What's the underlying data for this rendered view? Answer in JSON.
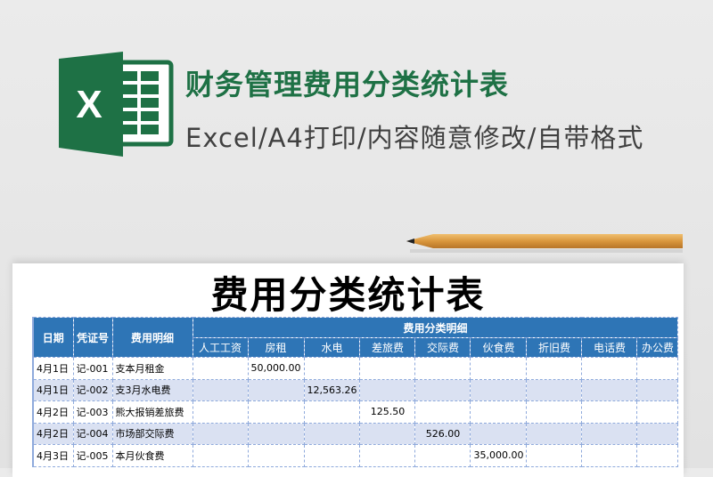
{
  "banner": {
    "title": "财务管理费用分类统计表",
    "subtitle": "Excel/A4打印/内容随意修改/自带格式",
    "logo_letter": "X",
    "brand_color": "#1e7145"
  },
  "sheet": {
    "title": "费用分类统计表",
    "headers": {
      "date": "日期",
      "voucher": "凭证号",
      "detail": "费用明细",
      "group": "费用分类明细",
      "categories": [
        "人工工资",
        "房租",
        "水电",
        "差旅费",
        "交际费",
        "伙食费",
        "折旧费",
        "电话费",
        "办公费"
      ]
    },
    "rows": [
      {
        "date": "4月1日",
        "voucher": "记-001",
        "detail": "支本月租金",
        "values": [
          "",
          "50,000.00",
          "",
          "",
          "",
          "",
          "",
          "",
          ""
        ]
      },
      {
        "date": "4月1日",
        "voucher": "记-002",
        "detail": "支3月水电费",
        "values": [
          "",
          "",
          "12,563.26",
          "",
          "",
          "",
          "",
          "",
          ""
        ]
      },
      {
        "date": "4月2日",
        "voucher": "记-003",
        "detail": "熊大报销差旅费",
        "values": [
          "",
          "",
          "",
          "125.50",
          "",
          "",
          "",
          "",
          ""
        ]
      },
      {
        "date": "4月2日",
        "voucher": "记-004",
        "detail": "市场部交际费",
        "values": [
          "",
          "",
          "",
          "",
          "526.00",
          "",
          "",
          "",
          ""
        ]
      },
      {
        "date": "4月3日",
        "voucher": "记-005",
        "detail": "本月伙食费",
        "values": [
          "",
          "",
          "",
          "",
          "",
          "35,000.00",
          "",
          "",
          ""
        ]
      }
    ],
    "header_color": "#2e75b6",
    "alt_row_color": "#dae1f2"
  }
}
